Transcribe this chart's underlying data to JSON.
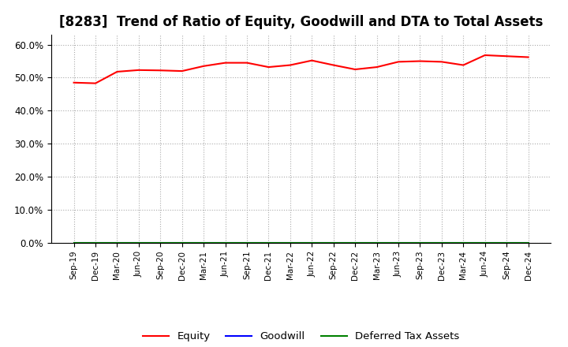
{
  "title": "[8283]  Trend of Ratio of Equity, Goodwill and DTA to Total Assets",
  "x_labels": [
    "Sep-19",
    "Dec-19",
    "Mar-20",
    "Jun-20",
    "Sep-20",
    "Dec-20",
    "Mar-21",
    "Jun-21",
    "Sep-21",
    "Dec-21",
    "Mar-22",
    "Jun-22",
    "Sep-22",
    "Dec-22",
    "Mar-23",
    "Jun-23",
    "Sep-23",
    "Dec-23",
    "Mar-24",
    "Jun-24",
    "Sep-24",
    "Dec-24"
  ],
  "equity": [
    48.5,
    48.3,
    51.8,
    52.3,
    52.2,
    52.0,
    53.5,
    54.5,
    54.5,
    53.2,
    53.8,
    55.2,
    53.8,
    52.5,
    53.2,
    54.8,
    55.0,
    54.8,
    53.8,
    56.8,
    56.5,
    56.2
  ],
  "goodwill": [
    0.0,
    0.0,
    0.0,
    0.0,
    0.0,
    0.0,
    0.0,
    0.0,
    0.0,
    0.0,
    0.0,
    0.0,
    0.0,
    0.0,
    0.0,
    0.0,
    0.0,
    0.0,
    0.0,
    0.0,
    0.0,
    0.0
  ],
  "dta": [
    0.0,
    0.0,
    0.0,
    0.0,
    0.0,
    0.0,
    0.0,
    0.0,
    0.0,
    0.0,
    0.0,
    0.0,
    0.0,
    0.0,
    0.0,
    0.0,
    0.0,
    0.0,
    0.0,
    0.0,
    0.0,
    0.0
  ],
  "equity_color": "#FF0000",
  "goodwill_color": "#0000FF",
  "dta_color": "#008000",
  "ylim": [
    0,
    63
  ],
  "yticks": [
    0.0,
    10.0,
    20.0,
    30.0,
    40.0,
    50.0,
    60.0
  ],
  "ytick_labels": [
    "0.0%",
    "10.0%",
    "20.0%",
    "30.0%",
    "40.0%",
    "50.0%",
    "60.0%"
  ],
  "background_color": "#FFFFFF",
  "plot_background": "#FFFFFF",
  "grid_color": "#AAAAAA",
  "title_fontsize": 12,
  "legend_labels": [
    "Equity",
    "Goodwill",
    "Deferred Tax Assets"
  ]
}
